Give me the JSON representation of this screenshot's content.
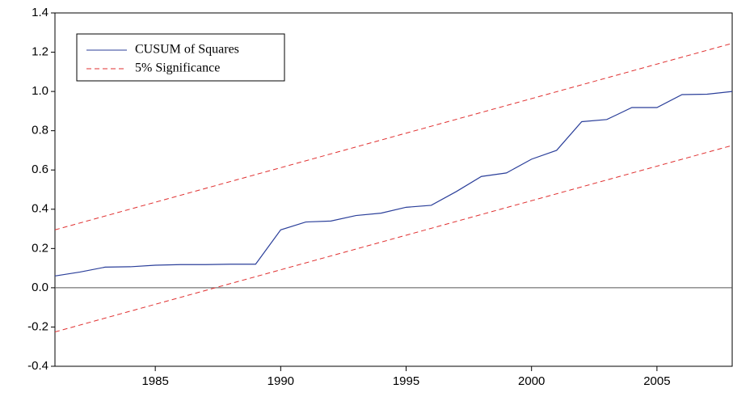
{
  "chart_data": {
    "type": "line",
    "x": [
      1981,
      1982,
      1983,
      1984,
      1985,
      1986,
      1987,
      1988,
      1989,
      1990,
      1991,
      1992,
      1993,
      1994,
      1995,
      1996,
      1997,
      1998,
      1999,
      2000,
      2001,
      2002,
      2003,
      2004,
      2005,
      2006,
      2007,
      2008
    ],
    "series": [
      {
        "name": "CUSUM of Squares",
        "color": "#2b3f9a",
        "values": [
          0.06,
          0.08,
          0.105,
          0.107,
          0.115,
          0.118,
          0.118,
          0.12,
          0.12,
          0.295,
          0.335,
          0.34,
          0.368,
          0.38,
          0.41,
          0.42,
          0.49,
          0.567,
          0.585,
          0.655,
          0.7,
          0.846,
          0.857,
          0.918,
          0.918,
          0.984,
          0.986,
          1.0
        ]
      }
    ],
    "bands": {
      "name": "5% Significance",
      "color": "#e03030",
      "dashed": true,
      "x": [
        1981,
        2008
      ],
      "upper": [
        0.295,
        1.245
      ],
      "lower": [
        -0.225,
        0.725
      ]
    },
    "xlim": [
      1981,
      2008
    ],
    "xticks": [
      1985,
      1990,
      1995,
      2000,
      2005
    ],
    "ylim": [
      -0.4,
      1.4
    ],
    "yticks": [
      -0.4,
      -0.2,
      {
        "value": 0,
        "label": "0.0"
      },
      0.2,
      0.4,
      0.6,
      0.8,
      {
        "value": 1,
        "label": "1.0"
      },
      1.2,
      1.4
    ],
    "zero_line": true,
    "legend": "upper-left"
  }
}
